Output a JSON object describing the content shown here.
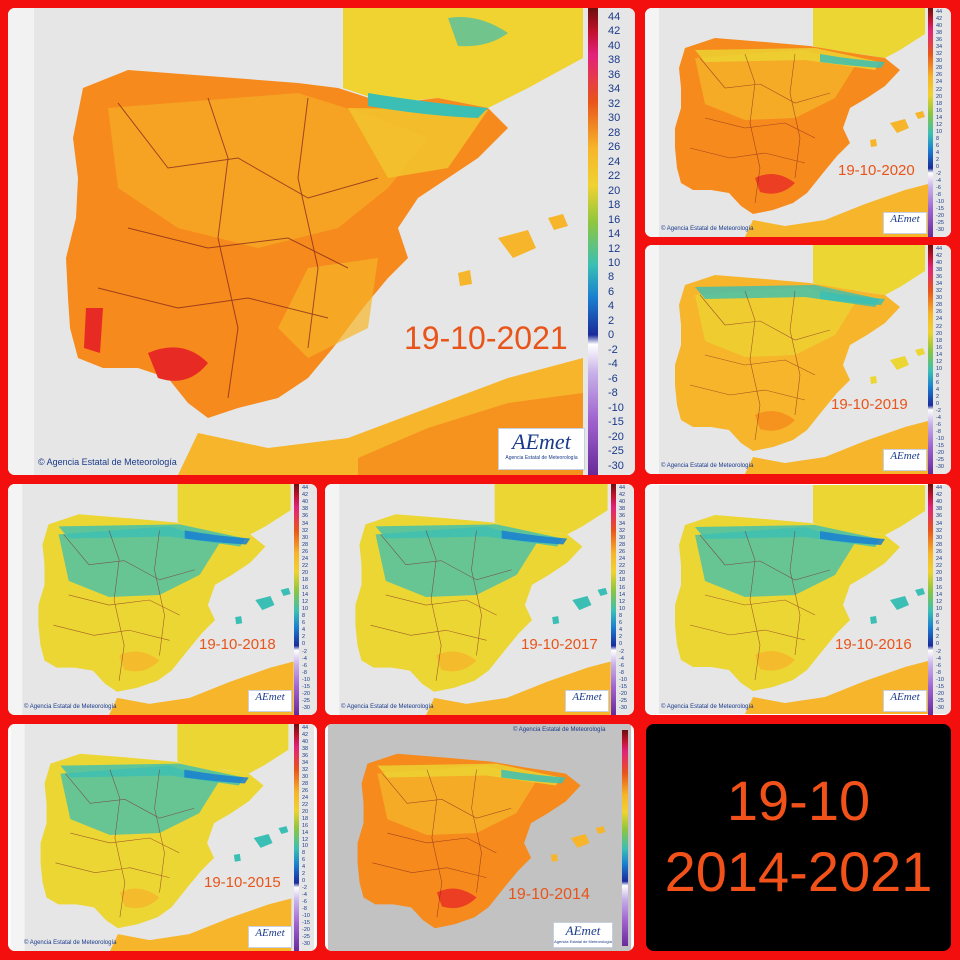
{
  "colors": {
    "frame": "#f40f0f",
    "sea": "#e6e6e6",
    "sea_2014": "#c2c2c2",
    "label": "#e8541a",
    "hot": "#f68a1c",
    "very_hot": "#e82a24",
    "warm": "#f6b52a",
    "mild": "#ecd634",
    "cool": "#3bbfb4"
  },
  "maps": [
    {
      "id": "2021",
      "date": "19-10-2021",
      "palette": "hot"
    },
    {
      "id": "2020",
      "date": "19-10-2020",
      "palette": "hot"
    },
    {
      "id": "2019",
      "date": "19-10-2019",
      "palette": "mixed"
    },
    {
      "id": "2018",
      "date": "19-10-2018",
      "palette": "cool"
    },
    {
      "id": "2017",
      "date": "19-10-2017",
      "palette": "cool"
    },
    {
      "id": "2016",
      "date": "19-10-2016",
      "palette": "cool"
    },
    {
      "id": "2015",
      "date": "19-10-2015",
      "palette": "cool"
    },
    {
      "id": "2014",
      "date": "19-10-2014",
      "palette": "hot"
    }
  ],
  "credit": "© Agencia Estatal de Meteorología",
  "logo": {
    "word": "AEmet",
    "sub": "Agencia Estatal de Meteorología"
  },
  "scale_labels": [
    "44",
    "42",
    "40",
    "38",
    "36",
    "34",
    "32",
    "30",
    "28",
    "26",
    "24",
    "22",
    "20",
    "18",
    "16",
    "14",
    "12",
    "10",
    "8",
    "6",
    "4",
    "2",
    "0",
    "-2",
    "-4",
    "-6",
    "-8",
    "-10",
    "-15",
    "-20",
    "-25",
    "-30"
  ],
  "summary": {
    "line1": "19-10",
    "line2": "2014-2021"
  }
}
